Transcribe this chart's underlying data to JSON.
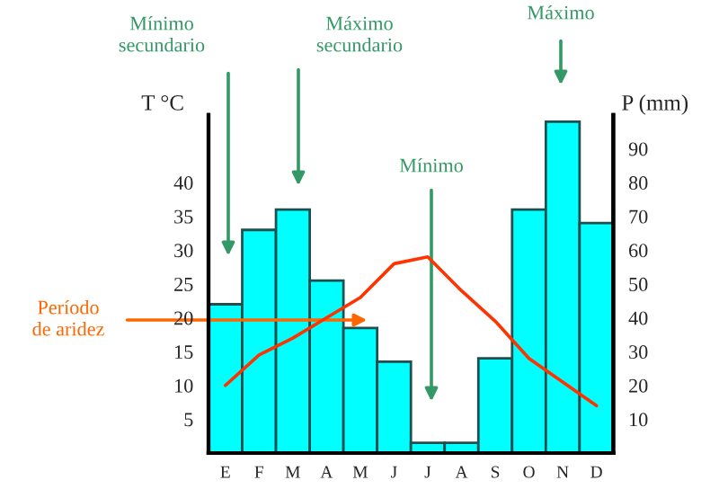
{
  "chart_data": {
    "type": "bar",
    "categories": [
      "E",
      "F",
      "M",
      "A",
      "M",
      "J",
      "J",
      "A",
      "S",
      "O",
      "N",
      "D"
    ],
    "series": [
      {
        "axis": "y2",
        "color": "#00ffff",
        "values": [
          44,
          66,
          72,
          51,
          37,
          27,
          3,
          3,
          28,
          72,
          98,
          68
        ]
      },
      {
        "type": "line",
        "color": "#ff3300",
        "values": [
          10,
          14.5,
          17,
          20,
          23,
          28,
          29,
          24,
          19.5,
          14,
          10.5,
          7
        ]
      }
    ],
    "ylabel": "T °C",
    "y2label": "P (mm)",
    "ylim": [
      0,
      50
    ],
    "yticks": [
      5,
      10,
      15,
      20,
      25,
      30,
      35,
      40
    ],
    "y2lim": [
      0,
      100
    ],
    "y2ticks": [
      10,
      20,
      30,
      40,
      50,
      60,
      70,
      80,
      90
    ],
    "annotations": [
      "Mínimo\nsecundario",
      "Máximo\nsecundario",
      "Mínimo",
      "Máximo",
      "Período\nde aridez"
    ],
    "grid": false,
    "legend": false
  }
}
